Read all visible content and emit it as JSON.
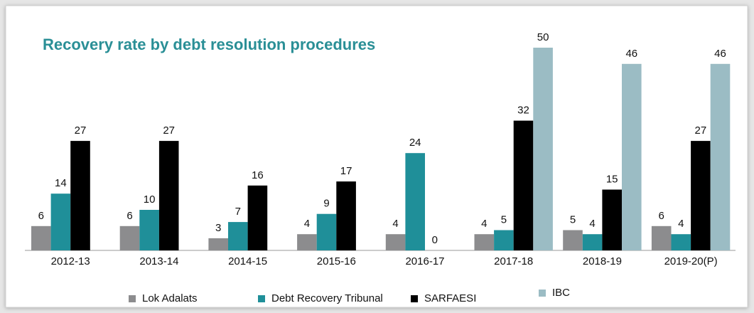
{
  "chart_data": {
    "type": "bar",
    "title": "Recovery rate by debt resolution procedures",
    "categories": [
      "2012-13",
      "2013-14",
      "2014-15",
      "2015-16",
      "2016-17",
      "2017-18",
      "2018-19",
      "2019-20(P)"
    ],
    "series": [
      {
        "name": "Lok Adalats",
        "color": "#8c8c8e",
        "values": [
          6,
          6,
          3,
          4,
          4,
          4,
          5,
          6
        ]
      },
      {
        "name": "Debt Recovery Tribunal",
        "color": "#1f8f99",
        "values": [
          14,
          10,
          7,
          9,
          24,
          5,
          4,
          4
        ]
      },
      {
        "name": "SARFAESI",
        "color": "#000000",
        "values": [
          27,
          27,
          16,
          17,
          0,
          32,
          15,
          27
        ]
      },
      {
        "name": "IBC",
        "color": "#9bbcc4",
        "values": [
          null,
          null,
          null,
          null,
          null,
          50,
          46,
          46
        ]
      }
    ]
  }
}
